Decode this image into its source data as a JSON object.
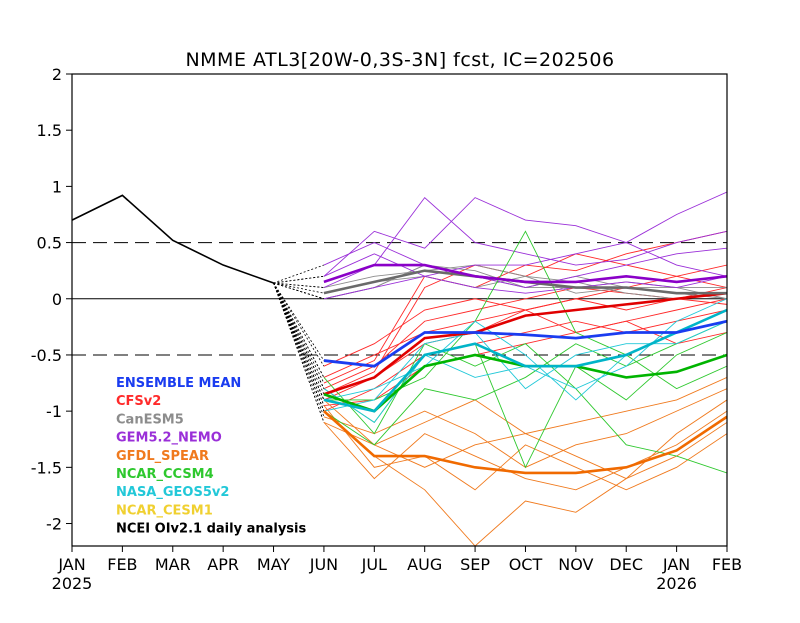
{
  "chart_data": {
    "type": "line",
    "title": "NMME ATL3[20W-0,3S-3N] fcst, IC=202506",
    "x_ticks": [
      "JAN",
      "FEB",
      "MAR",
      "APR",
      "MAY",
      "JUN",
      "JUL",
      "AUG",
      "SEP",
      "OCT",
      "NOV",
      "DEC",
      "JAN",
      "FEB"
    ],
    "x_year_labels": [
      {
        "index": 0,
        "label": "2025"
      },
      {
        "index": 12,
        "label": "2026"
      }
    ],
    "y_ticks": [
      2,
      1.5,
      1,
      0.5,
      0,
      -0.5,
      -1,
      -1.5,
      -2
    ],
    "y_tick_labels": [
      "2",
      "1.5",
      "1",
      "0.5",
      "0",
      "-0.5",
      "-1",
      "-1.5",
      "-2"
    ],
    "ylim": [
      -2.2,
      2
    ],
    "xlim": [
      0,
      13
    ],
    "reference_lines": {
      "solid": [
        0
      ],
      "dashed": [
        0.5,
        -0.5
      ]
    },
    "observed": {
      "name": "NCEI OIv2.1 daily analysis",
      "color": "#000000",
      "x": [
        0,
        1,
        2,
        3,
        4
      ],
      "values": [
        0.7,
        0.92,
        0.52,
        0.3,
        0.14
      ]
    },
    "model_groups": [
      {
        "name": "CFSv2",
        "color": "#ff2a2a",
        "ensemble_mean_color": "#e00000",
        "mean": [
          -0.85,
          -0.7,
          -0.35,
          -0.3,
          -0.15,
          -0.1,
          -0.05,
          0.0,
          0.05
        ],
        "members": [
          [
            -0.9,
            -0.7,
            -0.4,
            -0.3,
            -0.1,
            0.0,
            0.1,
            0.2,
            0.3
          ],
          [
            -0.8,
            -0.6,
            -0.2,
            -0.1,
            0.0,
            0.1,
            0.05,
            0.0,
            0.1
          ],
          [
            -0.7,
            -0.5,
            -0.3,
            -0.2,
            -0.1,
            -0.3,
            -0.2,
            -0.1,
            0.0
          ],
          [
            -1.0,
            -0.8,
            -0.5,
            -0.4,
            -0.3,
            -0.2,
            -0.3,
            -0.2,
            -0.1
          ],
          [
            -0.75,
            -0.55,
            0.2,
            0.1,
            0.3,
            0.25,
            0.4,
            0.5,
            0.6
          ],
          [
            -0.95,
            -0.9,
            -0.6,
            -0.5,
            -0.4,
            -0.3,
            -0.2,
            -0.4,
            -0.3
          ],
          [
            -0.85,
            -0.65,
            0.1,
            0.3,
            0.2,
            0.4,
            0.3,
            0.2,
            0.1
          ],
          [
            -0.6,
            -0.4,
            -0.1,
            0.0,
            -0.1,
            0.0,
            -0.1,
            0.0,
            -0.05
          ]
        ]
      },
      {
        "name": "CanESM5",
        "color": "#8c8c8c",
        "ensemble_mean_color": "#6a6a6a",
        "mean": [
          0.05,
          0.15,
          0.25,
          0.2,
          0.15,
          0.1,
          0.1,
          0.05,
          0.05
        ],
        "members": [
          [
            0.0,
            0.1,
            0.3,
            0.2,
            0.1,
            0.1,
            0.15,
            0.1,
            0.0
          ],
          [
            0.1,
            0.2,
            0.25,
            0.3,
            0.2,
            0.15,
            0.05,
            0.0,
            0.05
          ],
          [
            0.05,
            0.15,
            0.2,
            0.1,
            0.2,
            0.05,
            0.1,
            0.1,
            0.1
          ],
          [
            0.0,
            0.1,
            0.3,
            0.25,
            0.1,
            0.2,
            0.1,
            0.05,
            0.0
          ]
        ]
      },
      {
        "name": "GEM5.2_NEMO",
        "color": "#9a2fd8",
        "ensemble_mean_color": "#8a00c8",
        "mean": [
          0.15,
          0.3,
          0.3,
          0.2,
          0.15,
          0.15,
          0.2,
          0.15,
          0.2
        ],
        "members": [
          [
            0.2,
            0.6,
            0.45,
            0.9,
            0.7,
            0.65,
            0.5,
            0.75,
            0.95
          ],
          [
            0.1,
            0.3,
            0.9,
            0.5,
            0.4,
            0.3,
            0.35,
            0.5,
            0.6
          ],
          [
            0.3,
            0.5,
            0.3,
            0.2,
            0.1,
            0.2,
            0.3,
            0.4,
            0.45
          ],
          [
            0.0,
            0.1,
            0.2,
            0.1,
            0.05,
            0.1,
            0.15,
            0.1,
            0.2
          ],
          [
            0.2,
            0.4,
            0.2,
            0.3,
            0.3,
            0.4,
            0.5,
            0.3,
            0.2
          ]
        ]
      },
      {
        "name": "GFDL_SPEAR",
        "color": "#f07a1e",
        "ensemble_mean_color": "#f06a00",
        "mean": [
          -1.0,
          -1.4,
          -1.4,
          -1.5,
          -1.55,
          -1.55,
          -1.5,
          -1.35,
          -1.05
        ],
        "members": [
          [
            -1.1,
            -1.6,
            -1.2,
            -1.4,
            -1.6,
            -1.7,
            -1.5,
            -1.3,
            -1.0
          ],
          [
            -0.9,
            -1.3,
            -1.5,
            -1.3,
            -1.2,
            -1.4,
            -1.6,
            -1.2,
            -0.9
          ],
          [
            -1.0,
            -1.4,
            -1.7,
            -2.2,
            -1.8,
            -1.9,
            -1.6,
            -1.4,
            -1.1
          ],
          [
            -1.05,
            -1.2,
            -1.0,
            -1.2,
            -1.5,
            -1.3,
            -1.2,
            -1.0,
            -0.8
          ],
          [
            -0.95,
            -1.5,
            -1.4,
            -1.7,
            -1.3,
            -1.5,
            -1.7,
            -1.5,
            -1.2
          ],
          [
            -1.1,
            -1.3,
            -1.1,
            -0.9,
            -1.2,
            -1.1,
            -1.0,
            -0.9,
            -0.7
          ]
        ]
      },
      {
        "name": "NCAR_CCSM4",
        "color": "#2ec82e",
        "ensemble_mean_color": "#00b400",
        "mean": [
          -0.85,
          -1.0,
          -0.6,
          -0.5,
          -0.6,
          -0.6,
          -0.7,
          -0.65,
          -0.5
        ],
        "members": [
          [
            -0.8,
            -1.1,
            -0.5,
            -0.4,
            -1.5,
            -0.6,
            -0.9,
            -0.5,
            -0.3
          ],
          [
            -0.9,
            -0.9,
            -0.7,
            -0.2,
            0.6,
            -0.3,
            -0.5,
            -0.8,
            -0.6
          ],
          [
            -0.7,
            -1.2,
            -0.4,
            -0.6,
            -0.4,
            -0.8,
            -1.3,
            -1.4,
            -1.55
          ],
          [
            -1.0,
            -1.3,
            -0.8,
            -0.9,
            -0.7,
            -0.4,
            -0.6,
            -0.4,
            -0.2
          ]
        ]
      },
      {
        "name": "NASA_GEOS5v2",
        "color": "#22c8d8",
        "ensemble_mean_color": "#00b4c8",
        "mean": [
          -0.9,
          -1.0,
          -0.5,
          -0.4,
          -0.6,
          -0.6,
          -0.5,
          -0.3,
          -0.1
        ],
        "members": [
          [
            -0.8,
            -1.1,
            -0.5,
            -0.7,
            -0.6,
            -0.8,
            -0.6,
            -0.2,
            0.0
          ],
          [
            -1.0,
            -0.9,
            -0.4,
            -0.3,
            -0.8,
            -0.5,
            -0.4,
            -0.4,
            -0.2
          ],
          [
            -0.9,
            -0.8,
            -0.6,
            -0.2,
            -0.5,
            -0.9,
            -0.5,
            -0.3,
            -0.1
          ]
        ]
      },
      {
        "name": "NCAR_CESM1",
        "color": "#f0d030",
        "ensemble_mean_color": "#e0c000",
        "mean": [],
        "members": []
      }
    ],
    "ensemble_mean": {
      "name": "ENSEMBLE MEAN",
      "color": "#1a3cf0",
      "values": [
        -0.55,
        -0.6,
        -0.3,
        -0.3,
        -0.32,
        -0.35,
        -0.3,
        -0.3,
        -0.2
      ]
    },
    "legend": {
      "placement": "bottom-left",
      "entries": [
        {
          "label": "ENSEMBLE MEAN",
          "color": "#1a3cf0"
        },
        {
          "label": "CFSv2",
          "color": "#ff2a2a"
        },
        {
          "label": "CanESM5",
          "color": "#8c8c8c"
        },
        {
          "label": "GEM5.2_NEMO",
          "color": "#9a2fd8"
        },
        {
          "label": "GFDL_SPEAR",
          "color": "#f07a1e"
        },
        {
          "label": "NCAR_CCSM4",
          "color": "#2ec82e"
        },
        {
          "label": "NASA_GEOS5v2",
          "color": "#22c8d8"
        },
        {
          "label": "NCAR_CESM1",
          "color": "#f0d030"
        },
        {
          "label": "NCEI OIv2.1 daily analysis",
          "color": "#000000"
        }
      ]
    }
  }
}
